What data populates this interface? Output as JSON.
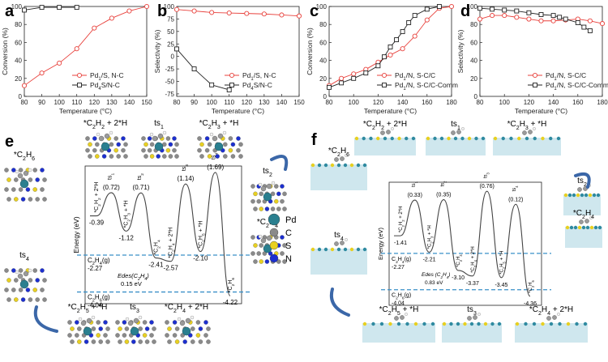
{
  "charts": {
    "a": {
      "panel_label": "a",
      "xlabel": "Temperature (°C)",
      "ylabel": "Conversion (%)",
      "xlim": [
        80,
        150
      ],
      "ylim": [
        0,
        100
      ],
      "xticks": [
        80,
        90,
        100,
        110,
        120,
        130,
        140,
        150
      ],
      "yticks": [
        0,
        20,
        40,
        60,
        80,
        100
      ],
      "legend": "bottom-right"
    },
    "b": {
      "panel_label": "b",
      "xlabel": "Temperature (°C)",
      "ylabel": "Selectivity (%)",
      "xlim": [
        80,
        150
      ],
      "ylim": [
        -80,
        100
      ],
      "xticks": [
        80,
        90,
        100,
        110,
        120,
        130,
        140,
        150
      ],
      "yticks": [
        -75,
        -50,
        -25,
        0,
        25,
        50,
        75,
        100
      ],
      "legend": "bottom-right"
    },
    "c": {
      "panel_label": "c",
      "xlabel": "Temperature (°C)",
      "ylabel": "Conversion (%)",
      "xlim": [
        80,
        180
      ],
      "ylim": [
        0,
        100
      ],
      "xticks": [
        80,
        100,
        120,
        140,
        160,
        180
      ],
      "yticks": [
        0,
        20,
        40,
        60,
        80,
        100
      ],
      "legend": "bottom-right"
    },
    "d": {
      "panel_label": "d",
      "xlabel": "Temperature (°C)",
      "ylabel": "Selectivity (%)",
      "xlim": [
        80,
        180
      ],
      "ylim": [
        0,
        100
      ],
      "xticks": [
        80,
        100,
        120,
        140,
        160,
        180
      ],
      "yticks": [
        0,
        20,
        40,
        60,
        80,
        100
      ],
      "legend": "bottom-right"
    }
  },
  "chart_data": [
    {
      "type": "line",
      "panel": "a",
      "xlabel": "Temperature (°C)",
      "ylabel": "Conversion (%)",
      "series": [
        {
          "name": "Pd1/S, N-C",
          "x": [
            80,
            90,
            100,
            110,
            120,
            130,
            140,
            150
          ],
          "y": [
            12,
            26,
            37,
            53,
            76,
            87,
            95,
            100
          ]
        },
        {
          "name": "Pd4S/N-C",
          "x": [
            80,
            90,
            100,
            110
          ],
          "y": [
            96,
            99,
            99,
            99
          ]
        }
      ]
    },
    {
      "type": "line",
      "panel": "b",
      "xlabel": "Temperature (°C)",
      "ylabel": "Selectivity (%)",
      "series": [
        {
          "name": "Pd1/S, N-C",
          "x": [
            80,
            90,
            100,
            110,
            120,
            130,
            140,
            150
          ],
          "y": [
            94,
            91,
            88,
            87,
            86,
            85,
            83,
            81
          ]
        },
        {
          "name": "Pd4S/N-C",
          "x": [
            80,
            90,
            100,
            110
          ],
          "y": [
            15,
            -25,
            -57,
            -67
          ]
        }
      ]
    },
    {
      "type": "line",
      "panel": "c",
      "xlabel": "Temperature (°C)",
      "ylabel": "Conversion (%)",
      "series": [
        {
          "name": "Pd1/N, S-C/C",
          "x": [
            80,
            90,
            100,
            110,
            120,
            130,
            140,
            150,
            160,
            170,
            180
          ],
          "y": [
            12,
            20,
            25,
            30,
            38,
            46,
            53,
            67,
            85,
            98,
            100
          ]
        },
        {
          "name": "Pd1/N, S-C/C-Comm",
          "x": [
            80,
            90,
            100,
            110,
            120,
            125,
            130,
            135,
            140,
            145,
            150,
            160,
            170
          ],
          "y": [
            10,
            15,
            20,
            26,
            34,
            44,
            55,
            63,
            72,
            82,
            90,
            97,
            100
          ]
        }
      ]
    },
    {
      "type": "line",
      "panel": "d",
      "xlabel": "Temperature (°C)",
      "ylabel": "Selectivity (%)",
      "series": [
        {
          "name": "Pd1/N, S-C/C",
          "x": [
            80,
            90,
            100,
            110,
            120,
            130,
            140,
            150,
            160,
            170,
            180
          ],
          "y": [
            86,
            90,
            90,
            88,
            86,
            84,
            84,
            85,
            86,
            84,
            81
          ]
        },
        {
          "name": "Pd1/N, S-C/C-Comm",
          "x": [
            80,
            90,
            100,
            110,
            120,
            130,
            140,
            145,
            150,
            160,
            165,
            170
          ],
          "y": [
            98,
            97,
            96,
            95,
            93,
            91,
            90,
            88,
            86,
            82,
            77,
            73
          ]
        }
      ]
    }
  ],
  "energy_e": {
    "panel_label": "e",
    "ylabel": "Energy (eV)",
    "species_labels": [
      "*C2H2 + 2*H",
      "ts1",
      "*C2H3 + *H",
      "ts2",
      "*C2H4",
      "*C2H4 + 2*H",
      "ts3",
      "*C2H5 + *H",
      "*C2H6",
      "ts4"
    ],
    "states": [
      "*C2H2 + 2*H",
      "ts1",
      "*C2H3 + *H",
      "ts2",
      "*C2H4",
      "*C2H4 + 2*H",
      "ts3",
      "*C2H5 + *H",
      "ts4",
      "*C2H6"
    ],
    "energies": [
      -0.39,
      0.72,
      -1.12,
      0.71,
      -2.41,
      -2.57,
      1.14,
      -2.1,
      1.69,
      -4.22
    ],
    "energy_texts": [
      "-0.39",
      "(0.72)",
      "-1.12",
      "(0.71)",
      "-2.41",
      "-2.57",
      "(1.14)",
      "-2.10",
      "(1.69)",
      "-4.22"
    ],
    "ref_lines": [
      {
        "label": "C2H4(g)",
        "value": "-2.27"
      },
      {
        "label": "C2H6(g)",
        "value": "-4.04"
      }
    ],
    "des_label": "Edes(C2H4)",
    "des_value": "0.15 eV"
  },
  "energy_f": {
    "panel_label": "f",
    "ylabel": "Energy (eV)",
    "species_labels": [
      "*C2H2 + 2*H",
      "ts1",
      "*C2H3 + *H",
      "ts2",
      "*C2H4",
      "*C2H5 + *H",
      "ts3",
      "*C2H4 + 2*H",
      "*C2H6",
      "ts4"
    ],
    "states": [
      "*C2H2 + 2*H",
      "ts1",
      "*C2H3 + *H",
      "ts2",
      "*C2H4",
      "*C2H4 + 2*H",
      "ts3",
      "*C2H5 + *H",
      "ts4",
      "*C2H6"
    ],
    "energies": [
      -1.41,
      0.33,
      -2.21,
      0.35,
      -3.1,
      -3.37,
      0.76,
      -3.45,
      0.12,
      -4.36
    ],
    "energy_texts": [
      "-1.41",
      "(0.33)",
      "-2.21",
      "(0.35)",
      "-3.10",
      "-3.37",
      "(0.76)",
      "-3.45",
      "(0.12)",
      "-4.36"
    ],
    "ref_lines": [
      {
        "label": "C2H4(g)",
        "value": "-2.27"
      },
      {
        "label": "C2H6(g)",
        "value": "-4.04"
      }
    ],
    "des_label": "Edes (C2H4)",
    "des_value": "0.83 eV"
  },
  "atom_legend": [
    {
      "symbol": "Pd",
      "color": "#2a7f8f"
    },
    {
      "symbol": "C",
      "color": "#8a8a8a"
    },
    {
      "symbol": "S",
      "color": "#e8d020"
    },
    {
      "symbol": "N",
      "color": "#1c2fd0"
    }
  ],
  "colors": {
    "red": "#e8413c",
    "black": "#222222",
    "dash": "#3a90c8"
  }
}
